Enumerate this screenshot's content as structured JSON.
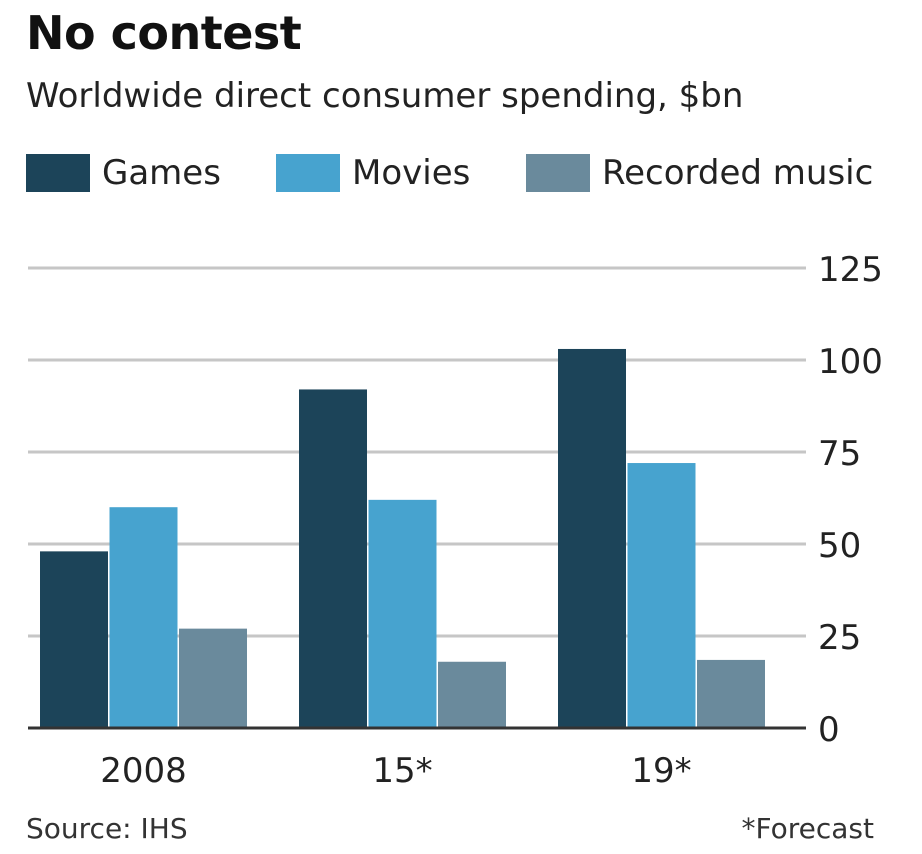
{
  "chart_data": {
    "type": "bar",
    "title": "No contest",
    "subtitle": "Worldwide direct consumer spending, $bn",
    "categories": [
      "2008",
      "15*",
      "19*"
    ],
    "series": [
      {
        "name": "Games",
        "values": [
          48,
          92,
          103
        ],
        "color": "#1c4459"
      },
      {
        "name": "Movies",
        "values": [
          60,
          62,
          72
        ],
        "color": "#47a3cf"
      },
      {
        "name": "Recorded music",
        "values": [
          27,
          18,
          18.5
        ],
        "color": "#6a8a9c"
      }
    ],
    "ylim": [
      0,
      125
    ],
    "yticks": [
      0,
      25,
      50,
      75,
      100,
      125
    ],
    "y_axis_side": "right",
    "grid": true,
    "legend_position": "top-left",
    "xlabel": "",
    "ylabel": ""
  },
  "source": "Source: IHS",
  "footnote": "*Forecast"
}
